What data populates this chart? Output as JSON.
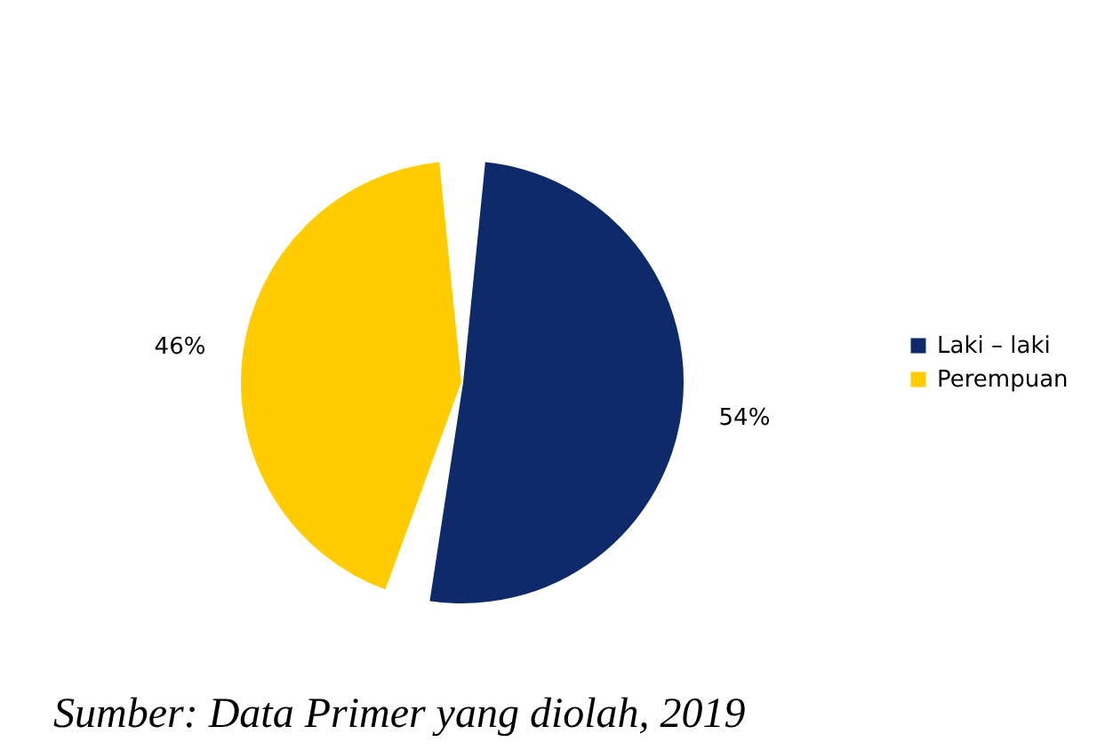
{
  "chart_data": {
    "type": "pie",
    "categories": [
      "Laki – laki",
      "Perempuan"
    ],
    "values": [
      54,
      46
    ],
    "colors": [
      "#0f2a6b",
      "#ffcc00"
    ],
    "value_labels": [
      "54%",
      "46%"
    ],
    "legend": "right",
    "annotations": [
      "Sumber: Data Primer yang diolah, 2019"
    ]
  }
}
